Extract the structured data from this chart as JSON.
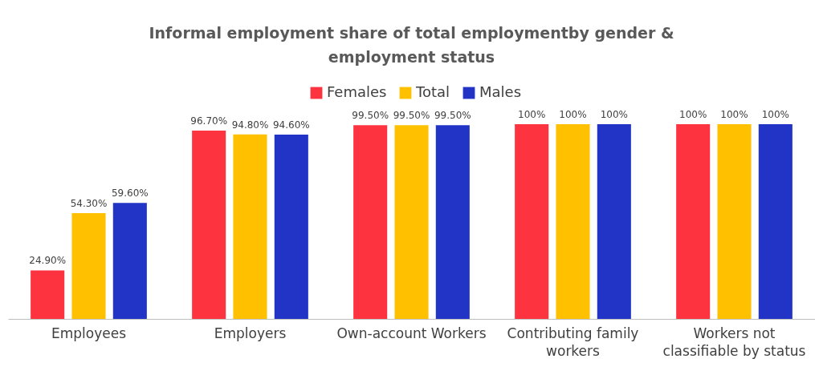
{
  "chart_data": {
    "type": "bar",
    "title": "Informal employment share of total employmentby gender & employment status",
    "categories": [
      "Employees",
      "Employers",
      "Own-account Workers",
      "Contributing family workers",
      "Workers not classifiable by status"
    ],
    "series": [
      {
        "name": "Females",
        "color": "#fd3340",
        "values": [
          24.9,
          96.7,
          99.5,
          100,
          100
        ],
        "value_labels": [
          "24.90%",
          "96.70%",
          "99.50%",
          "100%",
          "100%"
        ]
      },
      {
        "name": "Total",
        "color": "#ffc000",
        "values": [
          54.3,
          94.8,
          99.5,
          100,
          100
        ],
        "value_labels": [
          "54.30%",
          "94.80%",
          "99.50%",
          "100%",
          "100%"
        ]
      },
      {
        "name": "Males",
        "color": "#2234c6",
        "values": [
          59.6,
          94.6,
          99.5,
          100,
          100
        ],
        "value_labels": [
          "59.60%",
          "94.60%",
          "99.50%",
          "100%",
          "100%"
        ]
      }
    ],
    "legend": "top"
  }
}
